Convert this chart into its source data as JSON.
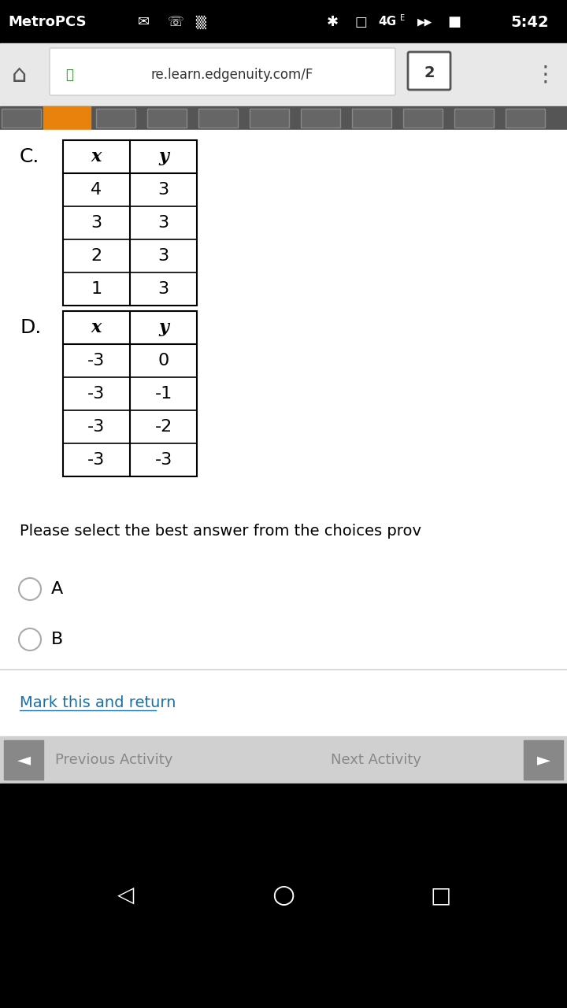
{
  "bg_color": "#f0f0f0",
  "white_bg": "#ffffff",
  "black_bar_color": "#000000",
  "url_text": "re.learn.edgenuity.com/F",
  "tab_number": "2",
  "toolbar_bg": "#555555",
  "orange_tab": "#e8820c",
  "C_label": "C.",
  "C_headers": [
    "x",
    "y"
  ],
  "C_rows": [
    [
      "4",
      "3"
    ],
    [
      "3",
      "3"
    ],
    [
      "2",
      "3"
    ],
    [
      "1",
      "3"
    ]
  ],
  "D_label": "D.",
  "D_headers": [
    "x",
    "y"
  ],
  "D_rows": [
    [
      "-3",
      "0"
    ],
    [
      "-3",
      "-1"
    ],
    [
      "-3",
      "-2"
    ],
    [
      "-3",
      "-3"
    ]
  ],
  "prompt_text": "Please select the best answer from the choices prov",
  "radio_A": "A",
  "radio_B": "B",
  "link_text": "Mark this and return",
  "prev_text": "Previous Activity",
  "next_text": "Next Activity",
  "nav_bg": "#d0d0d0",
  "bottom_bar": "#000000"
}
